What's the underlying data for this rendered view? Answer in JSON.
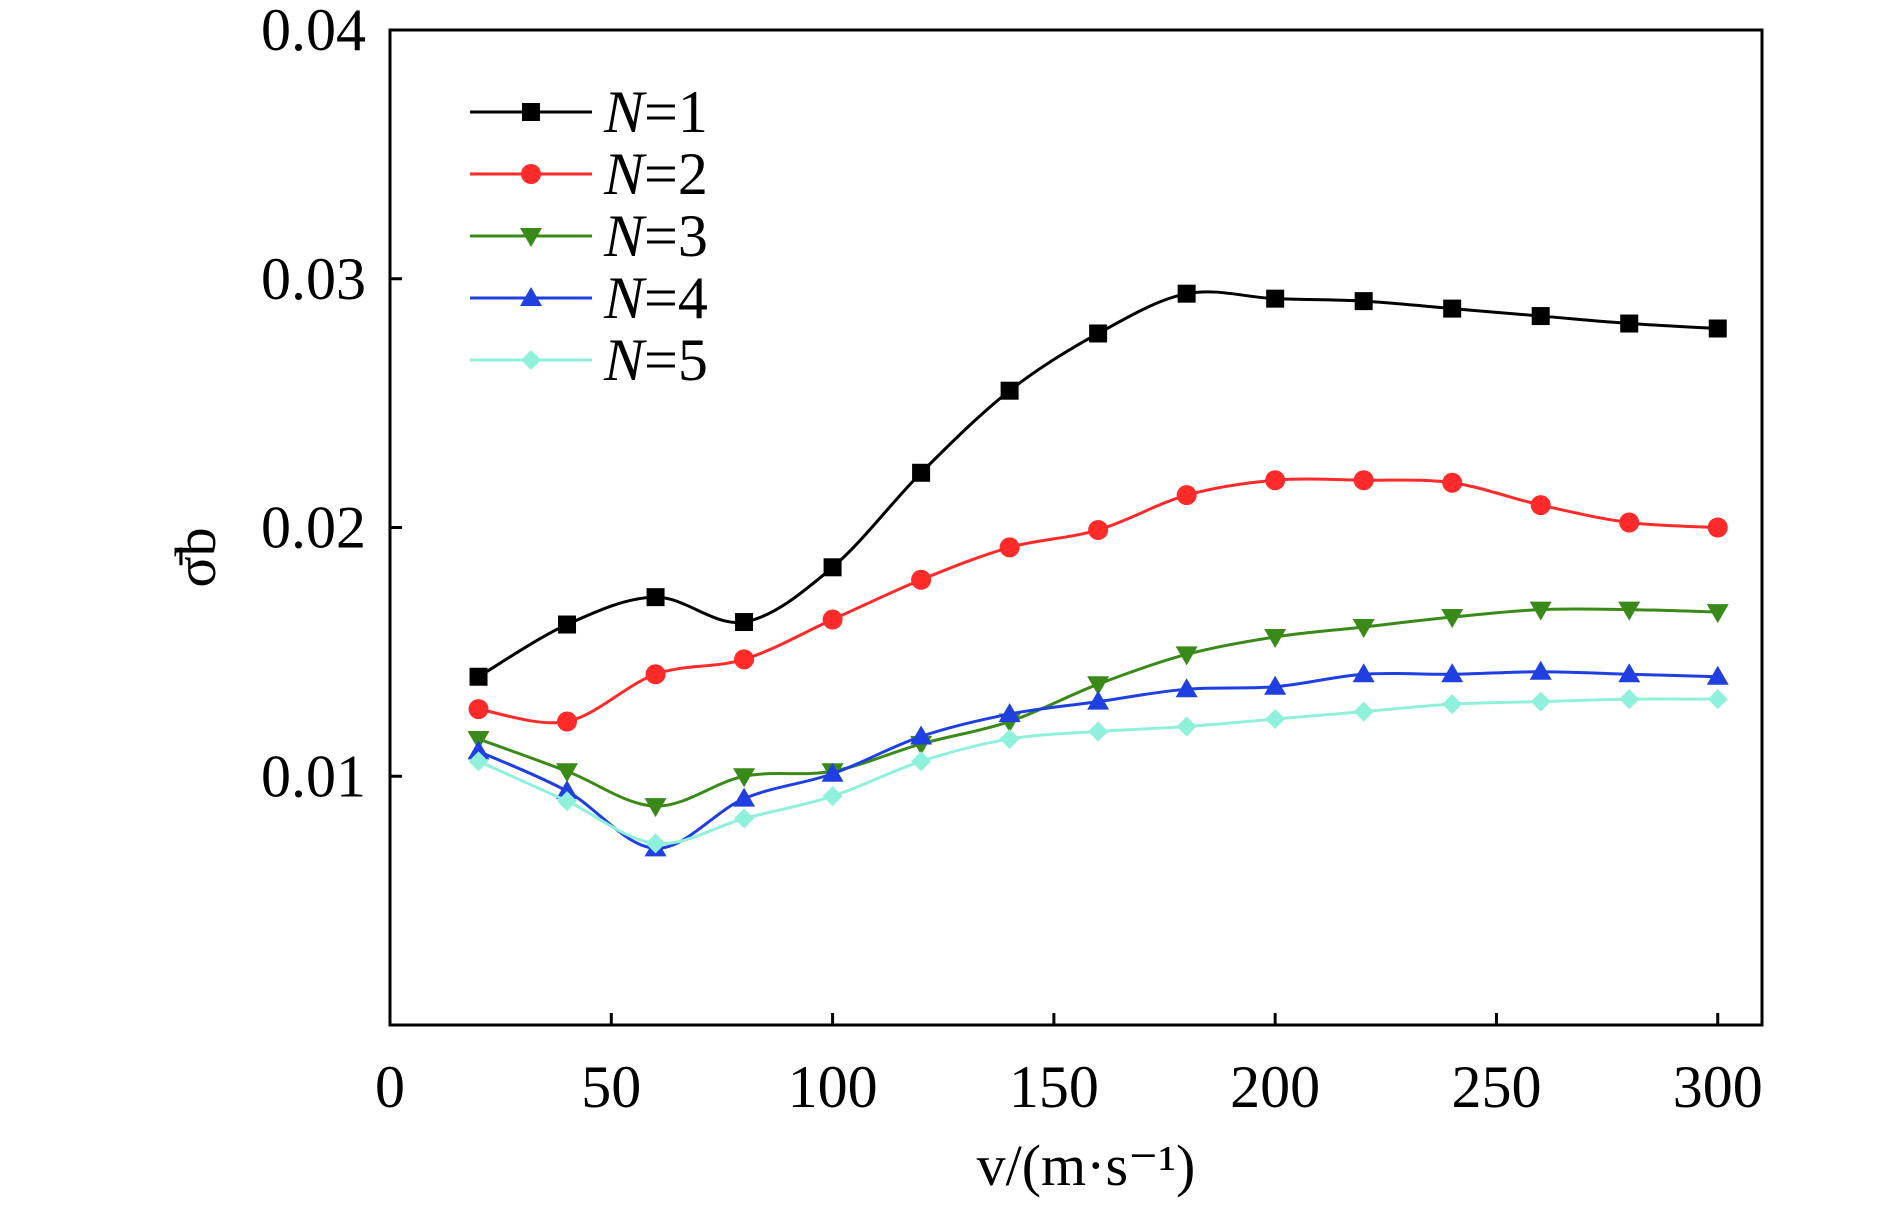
{
  "chart_data": {
    "type": "line",
    "title": "",
    "xlabel": "v/(m·s⁻¹)",
    "ylabel": "σ̄b",
    "xlim": [
      0,
      310
    ],
    "ylim": [
      0,
      0.04
    ],
    "xticks": [
      0,
      50,
      100,
      150,
      200,
      250,
      300
    ],
    "xtick_labels": [
      "0",
      "50",
      "100",
      "150",
      "200",
      "250",
      "300"
    ],
    "yticks": [
      0.01,
      0.02,
      0.03,
      0.04
    ],
    "ytick_labels": [
      "0.01",
      "0.02",
      "0.03",
      "0.04"
    ],
    "grid": false,
    "legend_position": "top-left",
    "x": [
      20,
      40,
      60,
      80,
      100,
      120,
      140,
      160,
      180,
      200,
      220,
      240,
      260,
      280,
      300
    ],
    "series": [
      {
        "name": "N=1",
        "color": "#000000",
        "marker": "square",
        "values": [
          0.014,
          0.0161,
          0.0172,
          0.0162,
          0.0184,
          0.0222,
          0.0255,
          0.0278,
          0.0294,
          0.0292,
          0.0291,
          0.0288,
          0.0285,
          0.0282,
          0.028
        ]
      },
      {
        "name": "N=2",
        "color": "#ff2a2a",
        "marker": "circle",
        "values": [
          0.0127,
          0.0122,
          0.0141,
          0.0147,
          0.0163,
          0.0179,
          0.0192,
          0.0199,
          0.0213,
          0.0219,
          0.0219,
          0.0218,
          0.0209,
          0.0202,
          0.02
        ]
      },
      {
        "name": "N=3",
        "color": "#3a8a1a",
        "marker": "triangle-down",
        "values": [
          0.0115,
          0.0102,
          0.0088,
          0.01,
          0.0102,
          0.0113,
          0.0122,
          0.0137,
          0.0149,
          0.0156,
          0.016,
          0.0164,
          0.0167,
          0.0167,
          0.0166
        ]
      },
      {
        "name": "N=4",
        "color": "#1f3fe0",
        "marker": "triangle-up",
        "values": [
          0.011,
          0.0094,
          0.0071,
          0.0091,
          0.0101,
          0.0116,
          0.0125,
          0.013,
          0.0135,
          0.0136,
          0.0141,
          0.0141,
          0.0142,
          0.0141,
          0.014
        ]
      },
      {
        "name": "N=5",
        "color": "#8ff0dc",
        "marker": "diamond",
        "values": [
          0.0106,
          0.009,
          0.0073,
          0.0083,
          0.0092,
          0.0106,
          0.0115,
          0.0118,
          0.012,
          0.0123,
          0.0126,
          0.0129,
          0.013,
          0.0131,
          0.0131
        ]
      }
    ]
  }
}
